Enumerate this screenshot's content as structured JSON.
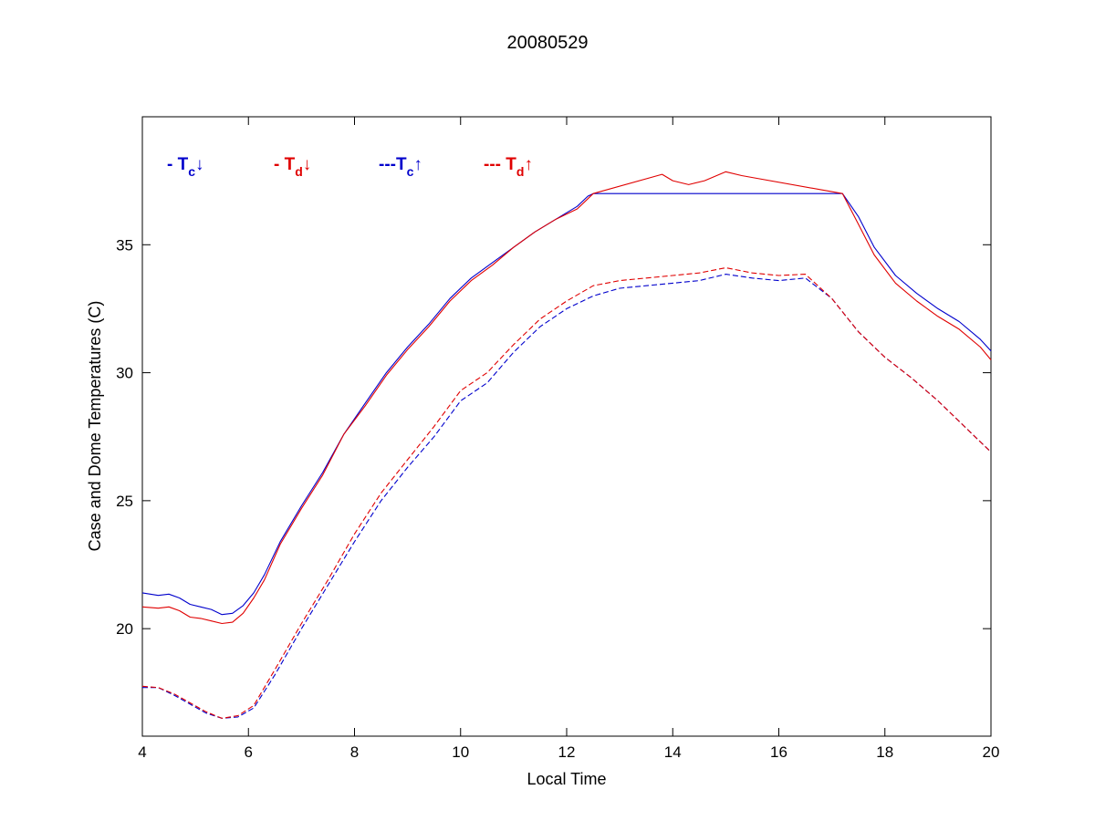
{
  "chart_data": {
    "type": "line",
    "title": "20080529",
    "xlabel": "Local Time",
    "ylabel": "Case and Dome Temperatures (C)",
    "xlim": [
      4,
      20
    ],
    "ylim": [
      15.8,
      40
    ],
    "xticks": [
      4,
      6,
      8,
      10,
      12,
      14,
      16,
      18,
      20
    ],
    "yticks": [
      20,
      25,
      30,
      35
    ],
    "grid": false,
    "legend_position": "top-left",
    "legend": [
      {
        "prefix": "- ",
        "main": "T",
        "sub": "c",
        "arrow": "↓",
        "color": "#0000cc"
      },
      {
        "prefix": "- ",
        "main": "T",
        "sub": "d",
        "arrow": "↓",
        "color": "#e00000"
      },
      {
        "prefix": "---",
        "main": "T",
        "sub": "c",
        "arrow": "↑",
        "color": "#0000cc"
      },
      {
        "prefix": "--- ",
        "main": "T",
        "sub": "d",
        "arrow": "↑",
        "color": "#e00000"
      }
    ],
    "series": [
      {
        "name": "Tc↓",
        "color": "#0000cc",
        "dash": "solid",
        "x": [
          4.0,
          4.3,
          4.5,
          4.7,
          4.9,
          5.1,
          5.3,
          5.5,
          5.7,
          5.9,
          6.1,
          6.3,
          6.6,
          7.0,
          7.4,
          7.8,
          8.2,
          8.6,
          9.0,
          9.4,
          9.8,
          10.2,
          10.6,
          11.0,
          11.4,
          11.8,
          12.2,
          12.4,
          12.5,
          15.0,
          17.2,
          17.5,
          17.8,
          18.2,
          18.6,
          19.0,
          19.4,
          19.8,
          20.0
        ],
        "y": [
          21.4,
          21.3,
          21.35,
          21.2,
          20.95,
          20.85,
          20.75,
          20.55,
          20.6,
          20.9,
          21.4,
          22.1,
          23.4,
          24.8,
          26.1,
          27.6,
          28.8,
          30.0,
          31.0,
          31.9,
          32.9,
          33.7,
          34.3,
          34.9,
          35.5,
          36.0,
          36.5,
          36.9,
          37.0,
          37.0,
          37.0,
          36.1,
          34.9,
          33.8,
          33.1,
          32.5,
          32.0,
          31.3,
          30.85
        ]
      },
      {
        "name": "Td↓",
        "color": "#e00000",
        "dash": "solid",
        "x": [
          4.0,
          4.3,
          4.5,
          4.7,
          4.9,
          5.1,
          5.3,
          5.5,
          5.7,
          5.9,
          6.1,
          6.3,
          6.6,
          7.0,
          7.4,
          7.8,
          8.2,
          8.6,
          9.0,
          9.4,
          9.8,
          10.2,
          10.6,
          11.0,
          11.4,
          11.8,
          12.2,
          12.4,
          12.5,
          13.8,
          14.0,
          14.3,
          14.6,
          15.0,
          15.3,
          17.2,
          17.5,
          17.8,
          18.2,
          18.6,
          19.0,
          19.4,
          19.8,
          20.0
        ],
        "y": [
          20.85,
          20.8,
          20.85,
          20.7,
          20.45,
          20.4,
          20.3,
          20.2,
          20.25,
          20.6,
          21.2,
          21.9,
          23.3,
          24.7,
          26.0,
          27.6,
          28.7,
          29.9,
          30.9,
          31.8,
          32.8,
          33.6,
          34.2,
          34.9,
          35.5,
          36.0,
          36.4,
          36.8,
          37.0,
          37.75,
          37.5,
          37.35,
          37.5,
          37.85,
          37.7,
          37.0,
          35.8,
          34.6,
          33.5,
          32.8,
          32.2,
          31.7,
          31.0,
          30.5
        ]
      },
      {
        "name": "Tc↑",
        "color": "#0000cc",
        "dash": "dashed",
        "x": [
          4.0,
          4.3,
          4.6,
          4.9,
          5.2,
          5.5,
          5.8,
          6.1,
          6.5,
          7.0,
          7.5,
          8.0,
          8.5,
          9.0,
          9.5,
          10.0,
          10.5,
          11.0,
          11.5,
          12.0,
          12.5,
          13.0,
          13.5,
          14.0,
          14.5,
          15.0,
          15.5,
          16.0,
          16.5,
          17.0,
          17.5,
          18.0,
          18.5,
          19.0,
          19.5,
          20.0
        ],
        "y": [
          17.7,
          17.7,
          17.4,
          17.05,
          16.7,
          16.5,
          16.55,
          16.9,
          18.2,
          20.0,
          21.7,
          23.4,
          25.0,
          26.3,
          27.5,
          28.9,
          29.6,
          30.8,
          31.8,
          32.5,
          33.0,
          33.3,
          33.4,
          33.5,
          33.6,
          33.85,
          33.7,
          33.6,
          33.7,
          32.9,
          31.6,
          30.6,
          29.8,
          28.9,
          27.9,
          26.9
        ]
      },
      {
        "name": "Td↑",
        "color": "#e00000",
        "dash": "dashed",
        "x": [
          4.0,
          4.3,
          4.6,
          4.9,
          5.2,
          5.5,
          5.8,
          6.1,
          6.5,
          7.0,
          7.5,
          8.0,
          8.5,
          9.0,
          9.5,
          10.0,
          10.5,
          11.0,
          11.5,
          12.0,
          12.5,
          13.0,
          13.5,
          14.0,
          14.5,
          15.0,
          15.5,
          16.0,
          16.5,
          17.0,
          17.5,
          18.0,
          18.5,
          19.0,
          19.5,
          20.0
        ],
        "y": [
          17.75,
          17.7,
          17.45,
          17.1,
          16.75,
          16.5,
          16.6,
          17.0,
          18.4,
          20.2,
          21.9,
          23.7,
          25.3,
          26.6,
          27.9,
          29.3,
          30.0,
          31.1,
          32.1,
          32.8,
          33.4,
          33.6,
          33.7,
          33.8,
          33.9,
          34.1,
          33.9,
          33.8,
          33.85,
          32.9,
          31.6,
          30.6,
          29.8,
          28.9,
          27.9,
          26.9
        ]
      }
    ]
  }
}
